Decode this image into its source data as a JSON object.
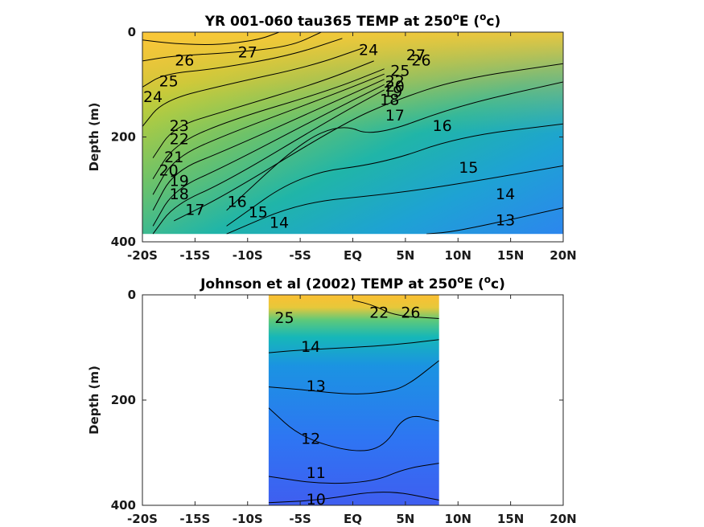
{
  "chart_data": [
    {
      "type": "heatmap",
      "title": "YR 001-060 tau365 TEMP at 250",
      "title_sup": "o",
      "title_tail": "E (",
      "title_sup2": "o",
      "title_end": "c)",
      "ylabel": "Depth (m)",
      "xlim": [
        -20,
        20
      ],
      "ylim": [
        0,
        400
      ],
      "y_reversed": true,
      "x_ticks": [
        {
          "v": -20,
          "label": "-20S"
        },
        {
          "v": -15,
          "label": "-15S"
        },
        {
          "v": -10,
          "label": "-10S"
        },
        {
          "v": -5,
          "label": "-5S"
        },
        {
          "v": 0,
          "label": "EQ"
        },
        {
          "v": 5,
          "label": "5N"
        },
        {
          "v": 10,
          "label": "10N"
        },
        {
          "v": 15,
          "label": "15N"
        },
        {
          "v": 20,
          "label": "20N"
        }
      ],
      "y_ticks": [
        {
          "v": 0,
          "label": "0"
        },
        {
          "v": 200,
          "label": "200"
        },
        {
          "v": 400,
          "label": "400"
        }
      ],
      "data_extent": {
        "x": [
          -20,
          20
        ],
        "depth": [
          0,
          385
        ]
      },
      "contours": [
        {
          "level": 27,
          "points": [
            [
              -7,
              0
            ],
            [
              -9,
              15
            ],
            [
              -13,
              25
            ],
            [
              -17,
              22
            ],
            [
              -20,
              15
            ]
          ]
        },
        {
          "level": 26,
          "points": [
            [
              -3,
              0
            ],
            [
              -6,
              28
            ],
            [
              -12,
              40
            ],
            [
              -17,
              45
            ],
            [
              -20,
              55
            ]
          ]
        },
        {
          "level": 25,
          "points": [
            [
              -1,
              12
            ],
            [
              -6,
              45
            ],
            [
              -13,
              70
            ],
            [
              -18,
              80
            ],
            [
              -20,
              105
            ]
          ]
        },
        {
          "level": 24,
          "points": [
            [
              1,
              30
            ],
            [
              -4,
              65
            ],
            [
              -12,
              100
            ],
            [
              -18,
              130
            ],
            [
              -20,
              180
            ]
          ]
        },
        {
          "level": 23,
          "points": [
            [
              2,
              55
            ],
            [
              -3,
              95
            ],
            [
              -12,
              150
            ],
            [
              -17,
              180
            ],
            [
              -19,
              240
            ]
          ]
        },
        {
          "level": 22,
          "points": [
            [
              3,
              70
            ],
            [
              -2,
              110
            ],
            [
              -12,
              170
            ],
            [
              -17,
              215
            ],
            [
              -19,
              280
            ]
          ]
        },
        {
          "level": 21,
          "points": [
            [
              3,
              80
            ],
            [
              -2,
              120
            ],
            [
              -12,
              195
            ],
            [
              -17,
              240
            ],
            [
              -19,
              310
            ]
          ]
        },
        {
          "level": 20,
          "points": [
            [
              3,
              90
            ],
            [
              -2,
              135
            ],
            [
              -12,
              225
            ],
            [
              -17,
              265
            ],
            [
              -19,
              340
            ]
          ]
        },
        {
          "level": 19,
          "points": [
            [
              3,
              100
            ],
            [
              -2,
              150
            ],
            [
              -12,
              255
            ],
            [
              -17,
              300
            ],
            [
              -19,
              370
            ]
          ]
        },
        {
          "level": 18,
          "points": [
            [
              3,
              110
            ],
            [
              -2,
              165
            ],
            [
              -12,
              285
            ],
            [
              -17,
              330
            ],
            [
              -19,
              385
            ]
          ]
        },
        {
          "level": 17,
          "points": [
            [
              20,
              60
            ],
            [
              10,
              90
            ],
            [
              4,
              130
            ],
            [
              -1,
              175
            ],
            [
              -12,
              310
            ],
            [
              -17,
              360
            ]
          ]
        },
        {
          "level": 16,
          "points": [
            [
              20,
              95
            ],
            [
              10,
              140
            ],
            [
              2,
              200
            ],
            [
              -1,
              175
            ],
            [
              -5,
              210
            ],
            [
              -12,
              340
            ]
          ]
        },
        {
          "level": 15,
          "points": [
            [
              20,
              175
            ],
            [
              10,
              200
            ],
            [
              3,
              250
            ],
            [
              -5,
              270
            ],
            [
              -12,
              370
            ]
          ]
        },
        {
          "level": 14,
          "points": [
            [
              20,
              255
            ],
            [
              10,
              290
            ],
            [
              3,
              310
            ],
            [
              -5,
              325
            ],
            [
              -12,
              385
            ]
          ]
        },
        {
          "level": 13,
          "points": [
            [
              20,
              335
            ],
            [
              10,
              380
            ],
            [
              7,
              385
            ]
          ]
        }
      ],
      "labels": [
        {
          "text": "27",
          "x": -10,
          "y": 40
        },
        {
          "text": "26",
          "x": -16,
          "y": 55
        },
        {
          "text": "25",
          "x": -17.5,
          "y": 95
        },
        {
          "text": "24",
          "x": -19,
          "y": 125
        },
        {
          "text": "23",
          "x": -16.5,
          "y": 180
        },
        {
          "text": "22",
          "x": -16.5,
          "y": 205
        },
        {
          "text": "21",
          "x": -17,
          "y": 240
        },
        {
          "text": "20",
          "x": -17.5,
          "y": 265
        },
        {
          "text": "19",
          "x": -16.5,
          "y": 285
        },
        {
          "text": "18",
          "x": -16.5,
          "y": 310
        },
        {
          "text": "17",
          "x": -15,
          "y": 340
        },
        {
          "text": "16",
          "x": -11,
          "y": 325
        },
        {
          "text": "15",
          "x": -9,
          "y": 345
        },
        {
          "text": "14",
          "x": -7,
          "y": 365
        },
        {
          "text": "24",
          "x": 1.5,
          "y": 35
        },
        {
          "text": "27",
          "x": 6,
          "y": 45
        },
        {
          "text": "26",
          "x": 6.5,
          "y": 55
        },
        {
          "text": "22",
          "x": 4,
          "y": 95
        },
        {
          "text": "25",
          "x": 4.5,
          "y": 75
        },
        {
          "text": "20",
          "x": 4,
          "y": 105
        },
        {
          "text": "19",
          "x": 3.8,
          "y": 115
        },
        {
          "text": "18",
          "x": 3.5,
          "y": 130
        },
        {
          "text": "17",
          "x": 4,
          "y": 160
        },
        {
          "text": "16",
          "x": 8.5,
          "y": 180
        },
        {
          "text": "15",
          "x": 11,
          "y": 260
        },
        {
          "text": "14",
          "x": 14.5,
          "y": 310
        },
        {
          "text": "13",
          "x": 14.5,
          "y": 360
        }
      ]
    },
    {
      "type": "heatmap",
      "title": "Johnson et al (2002) TEMP at 250",
      "title_sup": "o",
      "title_tail": "E (",
      "title_sup2": "o",
      "title_end": "c)",
      "ylabel": "Depth (m)",
      "xlim": [
        -20,
        20
      ],
      "ylim": [
        0,
        400
      ],
      "y_reversed": true,
      "x_ticks": [
        {
          "v": -20,
          "label": "-20S"
        },
        {
          "v": -15,
          "label": "-15S"
        },
        {
          "v": -10,
          "label": "-10S"
        },
        {
          "v": -5,
          "label": "-5S"
        },
        {
          "v": 0,
          "label": "EQ"
        },
        {
          "v": 5,
          "label": "5N"
        },
        {
          "v": 10,
          "label": "10N"
        },
        {
          "v": 15,
          "label": "15N"
        },
        {
          "v": 20,
          "label": "20N"
        }
      ],
      "y_ticks": [
        {
          "v": 0,
          "label": "0"
        },
        {
          "v": 200,
          "label": "200"
        },
        {
          "v": 400,
          "label": "400"
        }
      ],
      "data_extent": {
        "x": [
          -8,
          8.2
        ],
        "depth": [
          0,
          400
        ]
      },
      "contours": [
        {
          "level": 26,
          "points": [
            [
              8.2,
              45
            ],
            [
              4,
              40
            ],
            [
              2,
              20
            ],
            [
              0,
              10
            ]
          ]
        },
        {
          "level": 14,
          "points": [
            [
              8.2,
              85
            ],
            [
              4,
              95
            ],
            [
              0,
              100
            ],
            [
              -5,
              105
            ],
            [
              -8,
              110
            ]
          ]
        },
        {
          "level": 13,
          "points": [
            [
              8.2,
              125
            ],
            [
              5,
              175
            ],
            [
              3,
              185
            ],
            [
              0,
              190
            ],
            [
              -5,
              180
            ],
            [
              -8,
              175
            ]
          ]
        },
        {
          "level": 12,
          "points": [
            [
              8.2,
              240
            ],
            [
              5,
              225
            ],
            [
              3,
              290
            ],
            [
              0,
              300
            ],
            [
              -5,
              270
            ],
            [
              -8,
              215
            ]
          ]
        },
        {
          "level": 11,
          "points": [
            [
              8.2,
              320
            ],
            [
              5,
              330
            ],
            [
              2,
              355
            ],
            [
              -3,
              360
            ],
            [
              -8,
              345
            ]
          ]
        },
        {
          "level": 10,
          "points": [
            [
              8.2,
              390
            ],
            [
              3,
              370
            ],
            [
              -3,
              390
            ],
            [
              -8,
              395
            ]
          ]
        }
      ],
      "labels": [
        {
          "text": "25",
          "x": -6.5,
          "y": 45
        },
        {
          "text": "14",
          "x": -4,
          "y": 100
        },
        {
          "text": "13",
          "x": -3.5,
          "y": 175
        },
        {
          "text": "12",
          "x": -4,
          "y": 275
        },
        {
          "text": "11",
          "x": -3.5,
          "y": 340
        },
        {
          "text": "10",
          "x": -3.5,
          "y": 390
        },
        {
          "text": "26",
          "x": 5.5,
          "y": 35
        },
        {
          "text": "22",
          "x": 2.5,
          "y": 35
        }
      ]
    }
  ]
}
